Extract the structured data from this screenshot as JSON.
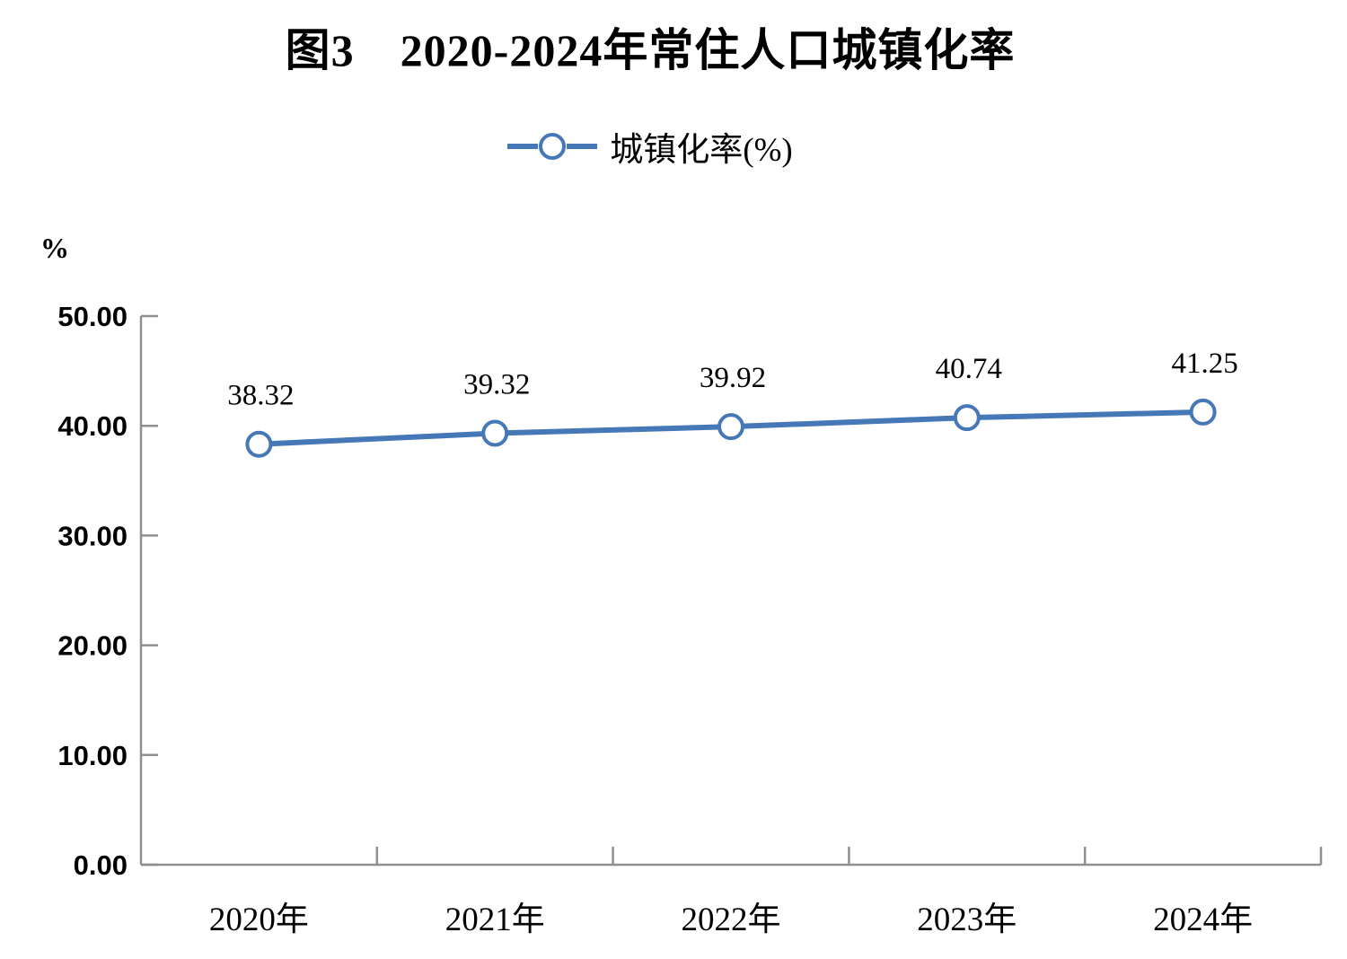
{
  "header": {
    "title": "图3　2020-2024年常住人口城镇化率"
  },
  "legend": {
    "label": "城镇化率(%)"
  },
  "chart_data": {
    "type": "line",
    "title": "图3　2020-2024年常住人口城镇化率",
    "categories": [
      "2020年",
      "2021年",
      "2022年",
      "2023年",
      "2024年"
    ],
    "series": [
      {
        "name": "城镇化率(%)",
        "values": [
          38.32,
          39.32,
          39.92,
          40.74,
          41.25
        ],
        "color": "#4678b8",
        "marker": "open-circle",
        "marker_fill": "#ffffff"
      }
    ],
    "data_labels": [
      "38.32",
      "39.32",
      "39.92",
      "40.74",
      "41.25"
    ],
    "xlabel": "",
    "ylabel": "%",
    "ylim": [
      0,
      50
    ],
    "ytick_interval": 10,
    "ytick_labels": [
      "0.00",
      "10.00",
      "20.00",
      "30.00",
      "40.00",
      "50.00"
    ],
    "grid": false,
    "legend_position": "top",
    "axis_color": "#8f8f8f",
    "text_color": "#000000"
  }
}
